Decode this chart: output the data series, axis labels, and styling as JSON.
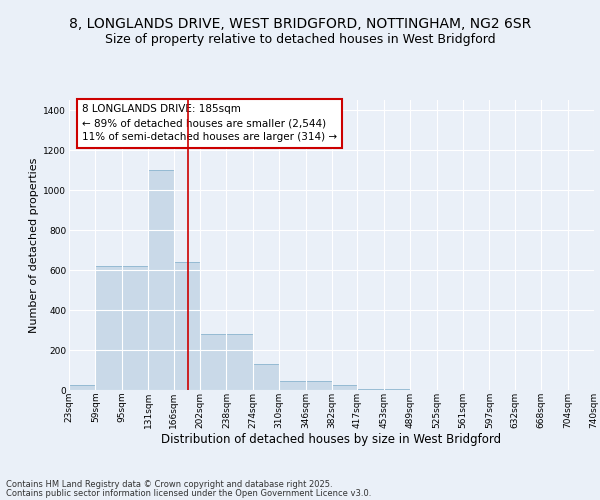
{
  "title_line1": "8, LONGLANDS DRIVE, WEST BRIDGFORD, NOTTINGHAM, NG2 6SR",
  "title_line2": "Size of property relative to detached houses in West Bridgford",
  "xlabel": "Distribution of detached houses by size in West Bridgford",
  "ylabel": "Number of detached properties",
  "bin_edges": [
    23,
    59,
    95,
    131,
    166,
    202,
    238,
    274,
    310,
    346,
    382,
    417,
    453,
    489,
    525,
    561,
    597,
    632,
    668,
    704,
    740
  ],
  "bar_heights": [
    25,
    620,
    620,
    1100,
    640,
    280,
    280,
    130,
    45,
    45,
    25,
    5,
    3,
    2,
    1,
    1,
    1,
    1,
    1,
    1
  ],
  "bar_color": "#c9d9e8",
  "bar_edge_color": "#7aaac8",
  "property_size": 185,
  "vline_color": "#cc0000",
  "annotation_line1": "8 LONGLANDS DRIVE: 185sqm",
  "annotation_line2": "← 89% of detached houses are smaller (2,544)",
  "annotation_line3": "11% of semi-detached houses are larger (314) →",
  "ylim": [
    0,
    1450
  ],
  "yticks": [
    0,
    200,
    400,
    600,
    800,
    1000,
    1200,
    1400
  ],
  "bg_color": "#eaf0f8",
  "plot_bg_color": "#eaf0f8",
  "grid_color": "#ffffff",
  "footer_line1": "Contains HM Land Registry data © Crown copyright and database right 2025.",
  "footer_line2": "Contains public sector information licensed under the Open Government Licence v3.0.",
  "title_fontsize": 10,
  "subtitle_fontsize": 9,
  "tick_fontsize": 6.5,
  "ylabel_fontsize": 8,
  "xlabel_fontsize": 8.5,
  "annotation_fontsize": 7.5,
  "footer_fontsize": 6
}
